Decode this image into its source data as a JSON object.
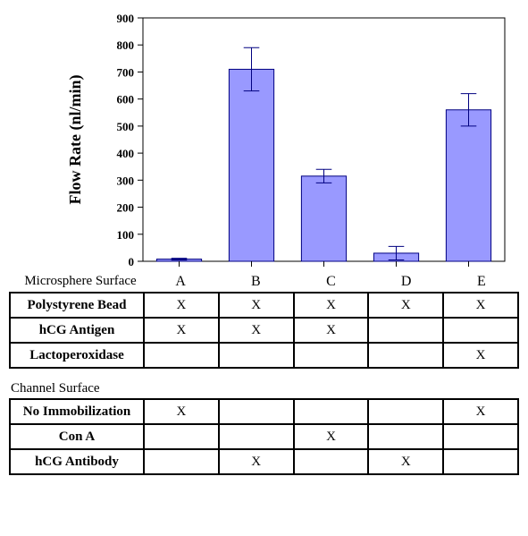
{
  "chart": {
    "type": "bar",
    "background_color": "#ffffff",
    "plot_border_color": "#000000",
    "plot_border_width": 1,
    "y_axis": {
      "label": "Flow Rate (nl/min)",
      "label_fontsize": 18,
      "label_fontweight": "bold",
      "min": 0,
      "max": 900,
      "tick_step": 100,
      "tick_fontsize": 13,
      "tick_fontweight": "bold"
    },
    "x_axis": {
      "categories": [
        "A",
        "B",
        "C",
        "D",
        "E"
      ],
      "label": "Microsphere\nSurface",
      "label_fontsize": 15,
      "tick_fontsize": 16
    },
    "bars": {
      "fill": "#9999ff",
      "stroke": "#000080",
      "stroke_width": 1,
      "width_ratio": 0.62,
      "values": [
        8,
        710,
        315,
        30,
        560
      ],
      "errors": [
        3,
        80,
        25,
        25,
        60
      ]
    },
    "error_bar": {
      "color": "#000080",
      "width": 1,
      "cap_ratio": 0.35
    }
  },
  "tables": {
    "cell_fontsize": 15,
    "header_fontsize": 15,
    "header_fontweight": "bold",
    "border_color": "#000000",
    "border_width": 2,
    "mark_char": "X",
    "microsphere": {
      "rows": [
        {
          "label": "Polystyrene Bead",
          "marks": [
            true,
            true,
            true,
            true,
            true
          ]
        },
        {
          "label": "hCG Antigen",
          "marks": [
            true,
            true,
            true,
            false,
            false
          ]
        },
        {
          "label": "Lactoperoxidase",
          "marks": [
            false,
            false,
            false,
            false,
            true
          ]
        }
      ]
    },
    "channel": {
      "title": "Channel Surface",
      "rows": [
        {
          "label": "No Immobilization",
          "marks": [
            true,
            false,
            false,
            false,
            true
          ]
        },
        {
          "label": "Con A",
          "marks": [
            false,
            false,
            true,
            false,
            false
          ]
        },
        {
          "label": "hCG Antibody",
          "marks": [
            false,
            true,
            false,
            true,
            false
          ]
        }
      ]
    }
  }
}
